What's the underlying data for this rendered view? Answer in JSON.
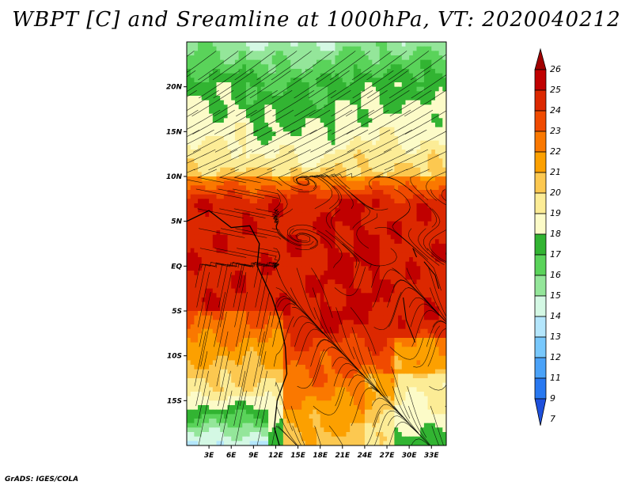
{
  "title": "WBPT [C] and Sreamline at 1000hPa, VT: 2020040212",
  "credit": "GrADS: IGES/COLA",
  "chart_data": {
    "type": "heatmap",
    "title": "WBPT [C] and Sreamline at 1000hPa, VT: 2020040212",
    "variable": "Wet-bulb potential temperature (WBPT) with streamlines",
    "level": "1000hPa",
    "valid_time": "2020040212",
    "x_range": [
      0,
      35
    ],
    "y_range": [
      -20,
      25
    ],
    "x_ticks": [
      {
        "value": 3,
        "label": "3E"
      },
      {
        "value": 6,
        "label": "6E"
      },
      {
        "value": 9,
        "label": "9E"
      },
      {
        "value": 12,
        "label": "12E"
      },
      {
        "value": 15,
        "label": "15E"
      },
      {
        "value": 18,
        "label": "18E"
      },
      {
        "value": 21,
        "label": "21E"
      },
      {
        "value": 24,
        "label": "24E"
      },
      {
        "value": 27,
        "label": "27E"
      },
      {
        "value": 30,
        "label": "30E"
      },
      {
        "value": 33,
        "label": "33E"
      }
    ],
    "y_ticks": [
      {
        "value": 20,
        "label": "20N"
      },
      {
        "value": 15,
        "label": "15N"
      },
      {
        "value": 10,
        "label": "10N"
      },
      {
        "value": 5,
        "label": "5N"
      },
      {
        "value": 0,
        "label": "EQ"
      },
      {
        "value": -5,
        "label": "5S"
      },
      {
        "value": -10,
        "label": "10S"
      },
      {
        "value": -15,
        "label": "15S"
      }
    ],
    "colorbar": {
      "labels": [
        "26",
        "25",
        "24",
        "23",
        "22",
        "21",
        "20",
        "19",
        "18",
        "17",
        "16",
        "15",
        "14",
        "13",
        "12",
        "11",
        "9",
        "7"
      ],
      "colors": [
        "#a00000",
        "#c00000",
        "#dc2800",
        "#f04a00",
        "#fa7800",
        "#fca000",
        "#fcc850",
        "#fcec96",
        "#fcfbc8",
        "#32b432",
        "#5ad35a",
        "#94e69a",
        "#d4f8e4",
        "#b4e6fc",
        "#78c8fc",
        "#4aa2f8",
        "#2878f0",
        "#1e50dc"
      ]
    }
  }
}
